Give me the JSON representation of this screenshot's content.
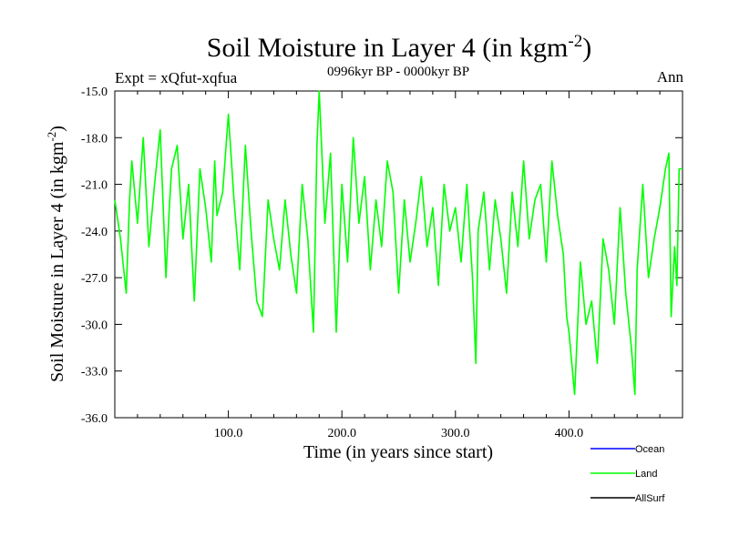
{
  "chart_data": {
    "type": "line",
    "title": "Soil Moisture in Layer 4 (in kgm",
    "title_sup": "-2",
    "title_close": ")",
    "subtitle": "0996kyr BP - 0000kyr BP",
    "expt_label": "Expt = xQfut-xqfua",
    "season_label": "Ann",
    "xlabel": "Time (in years since start)",
    "ylabel": "Soil Moisture in Layer 4 (in kgm",
    "ylabel_sup": "-2",
    "ylabel_close": ")",
    "xlim": [
      0,
      500
    ],
    "ylim": [
      -36.0,
      -15.0
    ],
    "x_ticks": [
      100,
      200,
      300,
      400
    ],
    "x_tick_labels": [
      "100.0",
      "200.0",
      "300.0",
      "400.0"
    ],
    "y_ticks": [
      -15,
      -18,
      -21,
      -24,
      -27,
      -30,
      -33,
      -36
    ],
    "y_tick_labels": [
      "-15.0",
      "-18.0",
      "-21.0",
      "-24.0",
      "-27.0",
      "-30.0",
      "-33.0",
      "-36.0"
    ],
    "legend": [
      {
        "name": "Ocean",
        "color": "#0000ff"
      },
      {
        "name": "Land",
        "color": "#00ff00"
      },
      {
        "name": "AllSurf",
        "color": "#000000"
      }
    ],
    "series": [
      {
        "name": "Land",
        "color": "#00ff00",
        "x": [
          0,
          5,
          10,
          13,
          15,
          20,
          25,
          30,
          35,
          40,
          45,
          48,
          50,
          55,
          60,
          65,
          70,
          75,
          80,
          85,
          88,
          90,
          95,
          100,
          105,
          110,
          115,
          120,
          125,
          130,
          135,
          140,
          145,
          150,
          155,
          160,
          165,
          170,
          175,
          178,
          180,
          185,
          190,
          195,
          200,
          205,
          210,
          215,
          220,
          225,
          230,
          235,
          240,
          245,
          250,
          255,
          260,
          265,
          270,
          275,
          280,
          285,
          290,
          295,
          300,
          305,
          310,
          315,
          318,
          320,
          325,
          330,
          335,
          340,
          345,
          350,
          355,
          360,
          365,
          370,
          375,
          380,
          385,
          390,
          395,
          398,
          400,
          405,
          410,
          415,
          420,
          425,
          430,
          435,
          440,
          445,
          450,
          455,
          458,
          460,
          465,
          470,
          475,
          480,
          485,
          488,
          490,
          493,
          495,
          497,
          500
        ],
        "values": [
          -22.0,
          -24.5,
          -28.0,
          -22.0,
          -19.5,
          -23.5,
          -18.0,
          -25.0,
          -21.0,
          -17.5,
          -27.0,
          -22.5,
          -20.0,
          -18.5,
          -24.5,
          -21.0,
          -28.5,
          -20.0,
          -22.5,
          -26.0,
          -19.5,
          -23.0,
          -21.5,
          -16.5,
          -22.0,
          -26.5,
          -18.5,
          -24.0,
          -28.5,
          -29.5,
          -22.0,
          -24.5,
          -26.5,
          -22.0,
          -25.5,
          -28.0,
          -21.0,
          -24.5,
          -30.5,
          -18.5,
          -15.0,
          -23.5,
          -19.0,
          -30.5,
          -21.0,
          -26.0,
          -18.0,
          -23.5,
          -20.5,
          -26.5,
          -22.0,
          -25.0,
          -19.5,
          -21.5,
          -28.0,
          -22.0,
          -26.0,
          -23.5,
          -20.5,
          -25.0,
          -22.5,
          -27.5,
          -21.0,
          -24.0,
          -22.5,
          -26.0,
          -21.0,
          -27.0,
          -32.5,
          -24.0,
          -21.5,
          -26.5,
          -22.0,
          -24.5,
          -28.0,
          -21.5,
          -25.0,
          -19.5,
          -24.5,
          -22.0,
          -21.0,
          -26.0,
          -19.5,
          -23.0,
          -25.5,
          -29.5,
          -30.5,
          -34.5,
          -26.0,
          -30.0,
          -28.5,
          -32.5,
          -24.5,
          -26.5,
          -30.0,
          -22.5,
          -28.0,
          -31.5,
          -34.5,
          -26.5,
          -21.0,
          -27.0,
          -24.5,
          -22.5,
          -20.0,
          -19.0,
          -29.5,
          -25.0,
          -27.5,
          -20.0,
          -20.0
        ]
      }
    ]
  }
}
